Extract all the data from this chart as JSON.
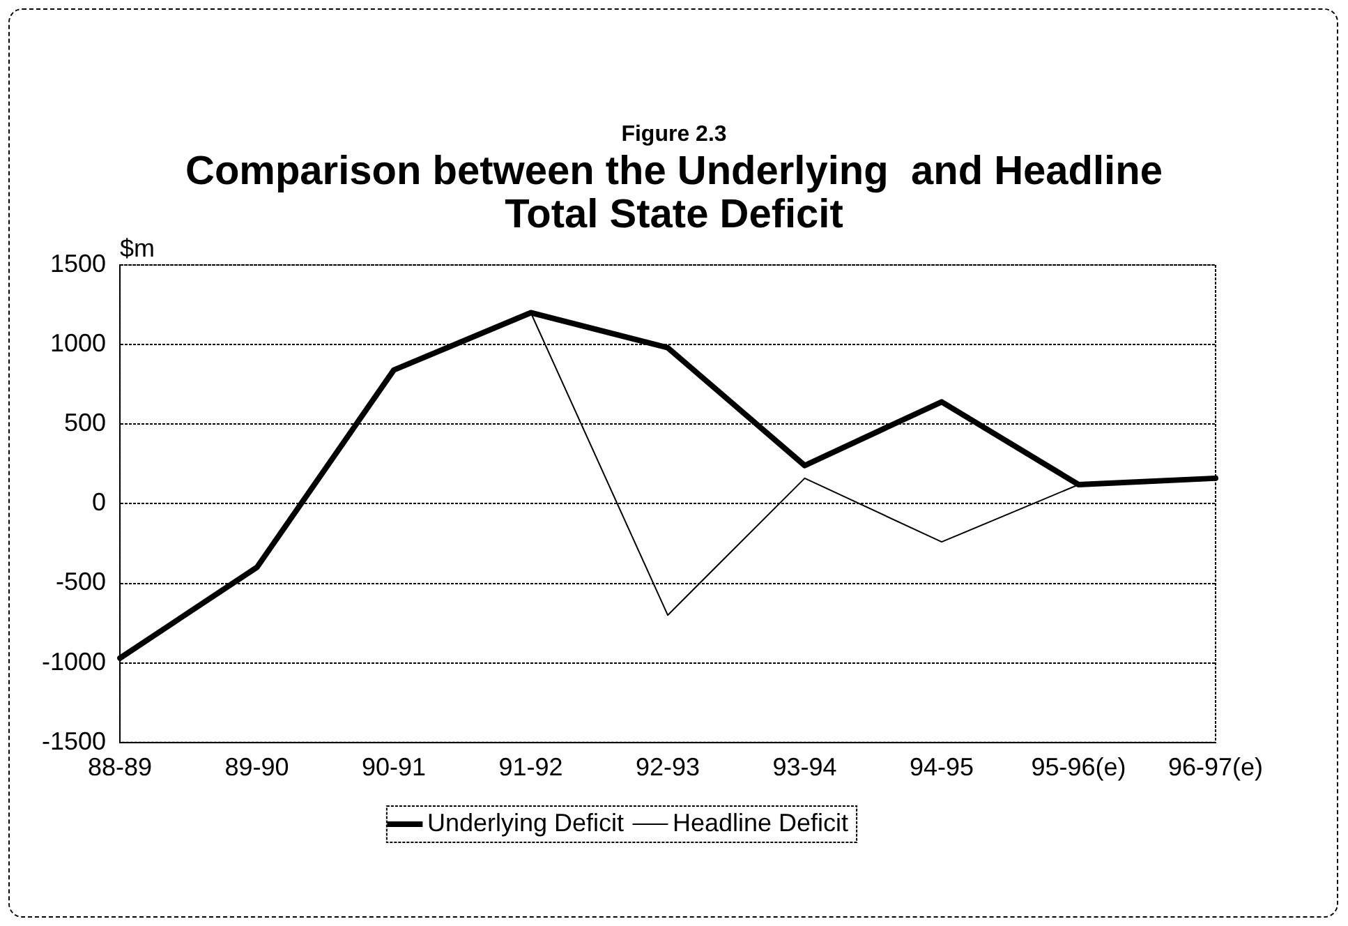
{
  "chart_data": {
    "type": "line",
    "subtitle": "Figure 2.3",
    "title": "Comparison between the Underlying  and Headline Total State Deficit",
    "ylabel": "$m",
    "categories": [
      "88-89",
      "89-90",
      "90-91",
      "91-92",
      "92-93",
      "93-94",
      "94-95",
      "95-96(e)",
      "96-97(e)"
    ],
    "series": [
      {
        "name": "Underlying Deficit",
        "color": "#000000",
        "values": [
          -970,
          -400,
          840,
          1200,
          980,
          240,
          640,
          120,
          160
        ]
      },
      {
        "name": "Headline Deficit",
        "color": "#000000",
        "values": [
          -970,
          -400,
          840,
          1200,
          -700,
          160,
          -240,
          120,
          160
        ]
      }
    ],
    "ylim": [
      -1500,
      1500
    ],
    "yticks": [
      -1500,
      -1000,
      -500,
      0,
      500,
      1000,
      1500
    ],
    "grid": "y",
    "legend": "bottom",
    "marker": "none",
    "line_style": "solid"
  }
}
